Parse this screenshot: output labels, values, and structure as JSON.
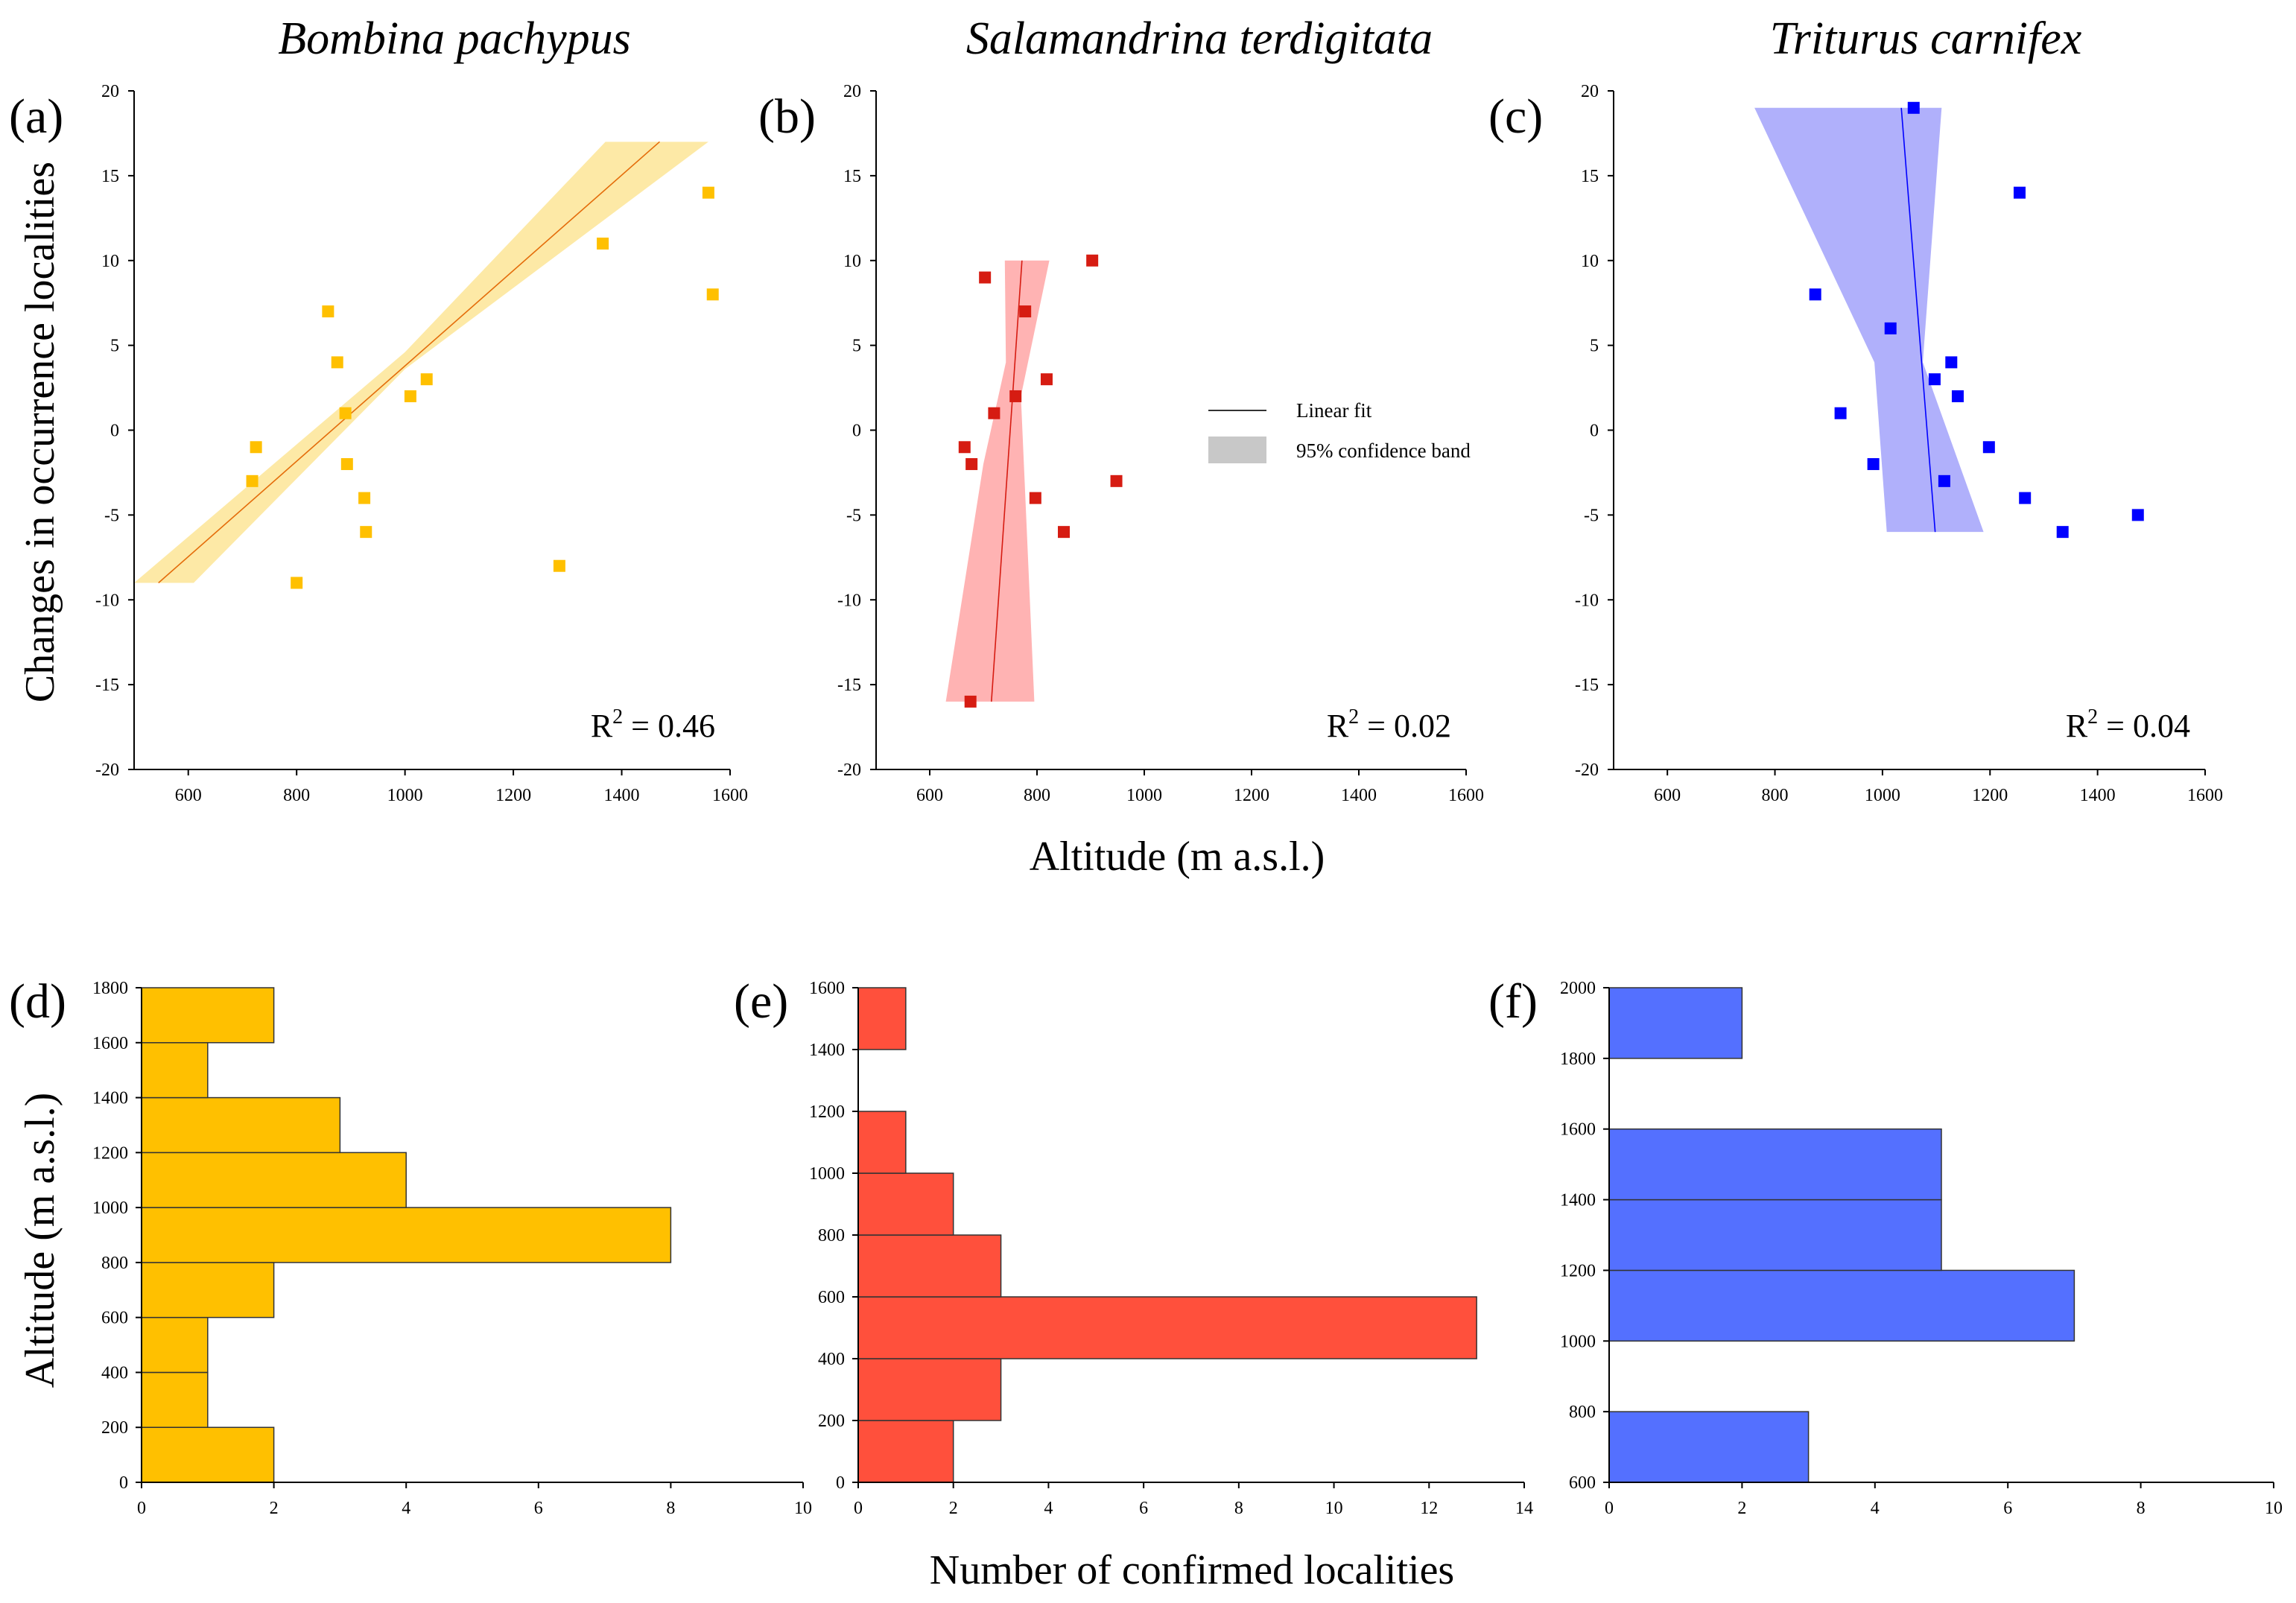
{
  "figure": {
    "x_axis_title_top": "Altitude (m a.s.l.)",
    "y_axis_title_top": "Changes in occurrence localities",
    "x_axis_title_bottom": "Number of confirmed localities",
    "y_axis_title_bottom": "Altitude (m a.s.l.)",
    "legend": {
      "line_label": "Linear fit",
      "band_label": "95% confidence band",
      "band_color": "#c8c8c8"
    }
  },
  "chart_data": [
    {
      "type": "scatter",
      "panel_label": "(a)",
      "title": "Bombina pachypus",
      "color": "#ffc000",
      "band_color": "#fde9a6",
      "line_color": "#e46c0a",
      "xlim": [
        500,
        1600
      ],
      "ylim": [
        -20,
        20
      ],
      "xticks": [
        600,
        800,
        1000,
        1200,
        1400,
        1600
      ],
      "yticks": [
        -20,
        -15,
        -10,
        -5,
        0,
        5,
        10,
        15,
        20
      ],
      "r2_prefix": "R",
      "r2_exp": "2",
      "r2_value": " = 0.46",
      "points": [
        {
          "x": 725,
          "y": -1
        },
        {
          "x": 718,
          "y": -3
        },
        {
          "x": 800,
          "y": -9
        },
        {
          "x": 858,
          "y": 7
        },
        {
          "x": 875,
          "y": 4
        },
        {
          "x": 890,
          "y": 1
        },
        {
          "x": 893,
          "y": -2
        },
        {
          "x": 925,
          "y": -4
        },
        {
          "x": 928,
          "y": -6
        },
        {
          "x": 1010,
          "y": 2
        },
        {
          "x": 1040,
          "y": 3
        },
        {
          "x": 1285,
          "y": -8
        },
        {
          "x": 1365,
          "y": 11
        },
        {
          "x": 1560,
          "y": 14
        },
        {
          "x": 1568,
          "y": 8
        }
      ],
      "fit_line": [
        {
          "x": 545,
          "y": -9
        },
        {
          "x": 1470,
          "y": 17
        }
      ],
      "band_upper": [
        {
          "x": 500,
          "y": -9
        },
        {
          "x": 1000,
          "y": 4.6
        },
        {
          "x": 1370,
          "y": 17
        },
        {
          "x": 1560,
          "y": 17
        }
      ],
      "band_lower": [
        {
          "x": 1560,
          "y": 17
        },
        {
          "x": 1000,
          "y": 3.6
        },
        {
          "x": 610,
          "y": -9
        },
        {
          "x": 500,
          "y": -9
        }
      ]
    },
    {
      "type": "scatter",
      "panel_label": "(b)",
      "title": "Salamandrina terdigitata",
      "color": "#d61c12",
      "band_color": "#ffb3b3",
      "line_color": "#d61c12",
      "xlim": [
        500,
        1600
      ],
      "ylim": [
        -20,
        20
      ],
      "xticks": [
        600,
        800,
        1000,
        1200,
        1400,
        1600
      ],
      "yticks": [
        -20,
        -15,
        -10,
        -5,
        0,
        5,
        10,
        15,
        20
      ],
      "r2_prefix": "R",
      "r2_exp": "2",
      "r2_value": " = 0.02",
      "points": [
        {
          "x": 665,
          "y": -1
        },
        {
          "x": 678,
          "y": -2
        },
        {
          "x": 676,
          "y": -16
        },
        {
          "x": 703,
          "y": 9
        },
        {
          "x": 720,
          "y": 1
        },
        {
          "x": 760,
          "y": 2
        },
        {
          "x": 778,
          "y": 7
        },
        {
          "x": 797,
          "y": -4
        },
        {
          "x": 818,
          "y": 3
        },
        {
          "x": 850,
          "y": -6
        },
        {
          "x": 903,
          "y": 10
        },
        {
          "x": 948,
          "y": -3
        }
      ],
      "fit_line": [
        {
          "x": 715,
          "y": -16
        },
        {
          "x": 772,
          "y": 10
        }
      ],
      "band_upper": [
        {
          "x": 630,
          "y": -16
        },
        {
          "x": 700,
          "y": -2
        },
        {
          "x": 742,
          "y": 4
        },
        {
          "x": 740,
          "y": 10
        },
        {
          "x": 823,
          "y": 10
        },
        {
          "x": 770,
          "y": 2
        },
        {
          "x": 795,
          "y": -16
        }
      ],
      "band_lower": []
    },
    {
      "type": "scatter",
      "panel_label": "(c)",
      "title": "Triturus carnifex",
      "color": "#0000ff",
      "band_color": "#b0b0fb",
      "line_color": "#0000ff",
      "xlim": [
        500,
        1600
      ],
      "ylim": [
        -20,
        20
      ],
      "xticks": [
        600,
        800,
        1000,
        1200,
        1400,
        1600
      ],
      "yticks": [
        -20,
        -15,
        -10,
        -5,
        0,
        5,
        10,
        15,
        20
      ],
      "r2_prefix": "R",
      "r2_exp": "2",
      "r2_value": " = 0.04",
      "points": [
        {
          "x": 875,
          "y": 8
        },
        {
          "x": 922,
          "y": 1
        },
        {
          "x": 983,
          "y": -2
        },
        {
          "x": 1015,
          "y": 6
        },
        {
          "x": 1058,
          "y": 19
        },
        {
          "x": 1097,
          "y": 3
        },
        {
          "x": 1115,
          "y": -3
        },
        {
          "x": 1128,
          "y": 4
        },
        {
          "x": 1140,
          "y": 2
        },
        {
          "x": 1198,
          "y": -1
        },
        {
          "x": 1255,
          "y": 14
        },
        {
          "x": 1265,
          "y": -4
        },
        {
          "x": 1335,
          "y": -6
        },
        {
          "x": 1475,
          "y": -5
        }
      ],
      "fit_line": [
        {
          "x": 1035,
          "y": 19
        },
        {
          "x": 1098,
          "y": -6
        }
      ],
      "band_upper": [
        {
          "x": 762,
          "y": 19
        },
        {
          "x": 1110,
          "y": 19
        },
        {
          "x": 1075,
          "y": 4
        },
        {
          "x": 1188,
          "y": -6
        },
        {
          "x": 1008,
          "y": -6
        },
        {
          "x": 985,
          "y": 4
        }
      ],
      "band_lower": []
    },
    {
      "type": "bar",
      "orientation": "horizontal",
      "panel_label": "(d)",
      "color": "#ffc000",
      "xlim": [
        0,
        10
      ],
      "ylim": [
        0,
        1800
      ],
      "xticks": [
        0,
        2,
        4,
        6,
        8,
        10
      ],
      "yticks": [
        0,
        200,
        400,
        600,
        800,
        1000,
        1200,
        1400,
        1600,
        1800
      ],
      "bins": [
        {
          "from": 0,
          "to": 200,
          "value": 2
        },
        {
          "from": 200,
          "to": 400,
          "value": 1
        },
        {
          "from": 400,
          "to": 600,
          "value": 1
        },
        {
          "from": 600,
          "to": 800,
          "value": 2
        },
        {
          "from": 800,
          "to": 1000,
          "value": 8
        },
        {
          "from": 1000,
          "to": 1200,
          "value": 4
        },
        {
          "from": 1200,
          "to": 1400,
          "value": 3
        },
        {
          "from": 1400,
          "to": 1600,
          "value": 1
        },
        {
          "from": 1600,
          "to": 1800,
          "value": 2
        }
      ]
    },
    {
      "type": "bar",
      "orientation": "horizontal",
      "panel_label": "(e)",
      "color": "#ff503c",
      "xlim": [
        0,
        14
      ],
      "ylim": [
        0,
        1600
      ],
      "xticks": [
        0,
        2,
        4,
        6,
        8,
        10,
        12,
        14
      ],
      "yticks": [
        0,
        200,
        400,
        600,
        800,
        1000,
        1200,
        1400,
        1600
      ],
      "bins": [
        {
          "from": 0,
          "to": 200,
          "value": 2
        },
        {
          "from": 200,
          "to": 400,
          "value": 3
        },
        {
          "from": 400,
          "to": 600,
          "value": 13
        },
        {
          "from": 600,
          "to": 800,
          "value": 3
        },
        {
          "from": 800,
          "to": 1000,
          "value": 2
        },
        {
          "from": 1000,
          "to": 1200,
          "value": 1
        },
        {
          "from": 1200,
          "to": 1400,
          "value": 0
        },
        {
          "from": 1400,
          "to": 1600,
          "value": 1
        }
      ]
    },
    {
      "type": "bar",
      "orientation": "horizontal",
      "panel_label": "(f)",
      "color": "#5470ff",
      "xlim": [
        0,
        10
      ],
      "ylim": [
        600,
        2000
      ],
      "xticks": [
        0,
        2,
        4,
        6,
        8,
        10
      ],
      "yticks": [
        600,
        800,
        1000,
        1200,
        1400,
        1600,
        1800,
        2000
      ],
      "bins": [
        {
          "from": 600,
          "to": 800,
          "value": 3
        },
        {
          "from": 800,
          "to": 1000,
          "value": 0
        },
        {
          "from": 1000,
          "to": 1200,
          "value": 7
        },
        {
          "from": 1200,
          "to": 1400,
          "value": 5
        },
        {
          "from": 1400,
          "to": 1600,
          "value": 5
        },
        {
          "from": 1600,
          "to": 1800,
          "value": 0
        },
        {
          "from": 1800,
          "to": 2000,
          "value": 2
        }
      ]
    }
  ]
}
